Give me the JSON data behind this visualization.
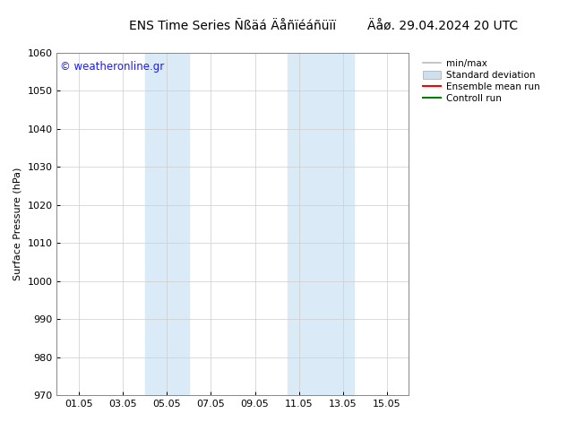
{
  "title_left": "ENS Time Series Ñßäá Äåñïéáñüïï",
  "title_right": "Äåø. 29.04.2024 20 UTC",
  "ylabel": "Surface Pressure (hPa)",
  "watermark": "© weatheronline.gr",
  "ylim": [
    970,
    1060
  ],
  "yticks": [
    970,
    980,
    990,
    1000,
    1010,
    1020,
    1030,
    1040,
    1050,
    1060
  ],
  "xtick_labels": [
    "01.05",
    "03.05",
    "05.05",
    "07.05",
    "09.05",
    "11.05",
    "13.05",
    "15.05"
  ],
  "xtick_positions": [
    1,
    3,
    5,
    7,
    9,
    11,
    13,
    15
  ],
  "xlim": [
    0,
    16
  ],
  "shaded_bands": [
    {
      "xmin": 4.0,
      "xmax": 6.0,
      "color": "#daeaf6"
    },
    {
      "xmin": 10.5,
      "xmax": 13.5,
      "color": "#daeaf6"
    }
  ],
  "legend_entries": [
    {
      "label": "min/max",
      "color": "#bbbbbb",
      "lw": 1.2,
      "style": "solid"
    },
    {
      "label": "Standard deviation",
      "color": "#cce0f0",
      "lw": 8,
      "style": "solid"
    },
    {
      "label": "Ensemble mean run",
      "color": "#ff0000",
      "lw": 1.5,
      "style": "solid"
    },
    {
      "label": "Controll run",
      "color": "#008000",
      "lw": 1.5,
      "style": "solid"
    }
  ],
  "bg_color": "#ffffff",
  "plot_bg_color": "#ffffff",
  "grid_color": "#cccccc",
  "title_fontsize": 10,
  "axis_fontsize": 8,
  "watermark_color": "#1a1aff",
  "watermark_fontsize": 8.5
}
